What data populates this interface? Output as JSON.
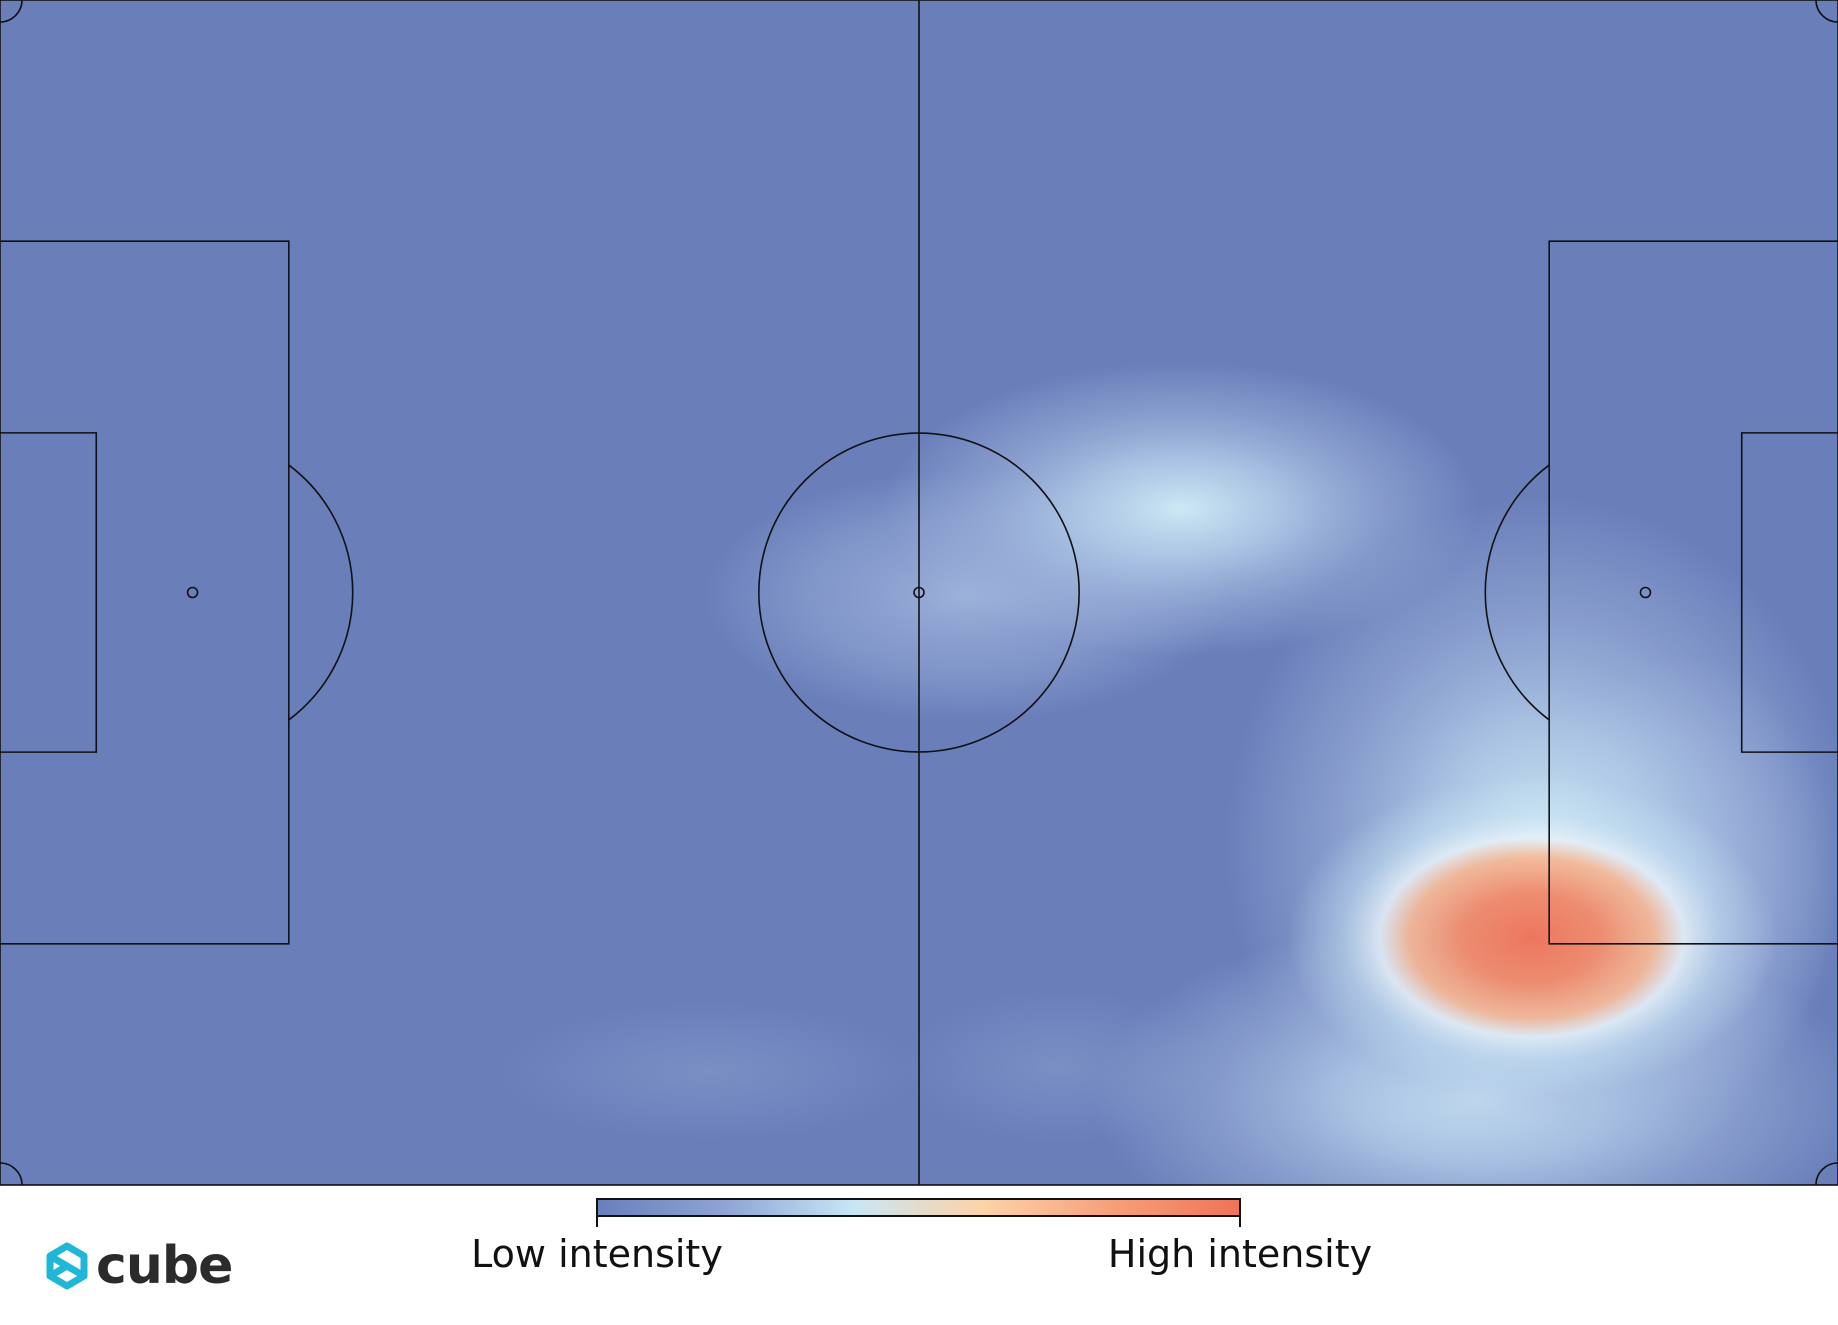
{
  "brand": {
    "name": "cube",
    "icon": "cube-logo-icon",
    "icon_color": "#1fb6d8",
    "text_color": "#2b2b2b"
  },
  "legend": {
    "low_label": "Low intensity",
    "high_label": "High intensity"
  },
  "colors": {
    "pitch": "#6a7fba",
    "line": "#111111",
    "scale": [
      "#6a7fba",
      "#8fa4d4",
      "#c9e6f5",
      "#fdd3a8",
      "#f6a07a",
      "#ef7358"
    ]
  },
  "chart_data": {
    "type": "heatmap",
    "title": "",
    "xlabel": "",
    "ylabel": "",
    "pitch": {
      "length": 105,
      "width": 68
    },
    "xlim": [
      0,
      105
    ],
    "ylim": [
      0,
      68
    ],
    "grid": false,
    "colorbar": {
      "position": "bottom-center",
      "low_label": "Low intensity",
      "high_label": "High intensity"
    },
    "hotspots": [
      {
        "x": 87.5,
        "y": 14.2,
        "intensity": 1.0,
        "sx": 7.0,
        "sy": 4.6
      },
      {
        "x": 88.0,
        "y": 19.5,
        "intensity": 0.45,
        "sx": 9.0,
        "sy": 10.0
      },
      {
        "x": 84.5,
        "y": 5.0,
        "intensity": 0.42,
        "sx": 11.0,
        "sy": 5.2
      },
      {
        "x": 67.5,
        "y": 38.8,
        "intensity": 0.4,
        "sx": 8.5,
        "sy": 4.2
      },
      {
        "x": 55.2,
        "y": 33.8,
        "intensity": 0.22,
        "sx": 7.5,
        "sy": 3.6
      },
      {
        "x": 96.0,
        "y": 17.5,
        "intensity": 0.24,
        "sx": 4.5,
        "sy": 6.5
      },
      {
        "x": 60.5,
        "y": 6.8,
        "intensity": 0.06,
        "sx": 4.5,
        "sy": 2.2
      },
      {
        "x": 40.5,
        "y": 6.5,
        "intensity": 0.05,
        "sx": 6.0,
        "sy": 2.0
      }
    ]
  }
}
